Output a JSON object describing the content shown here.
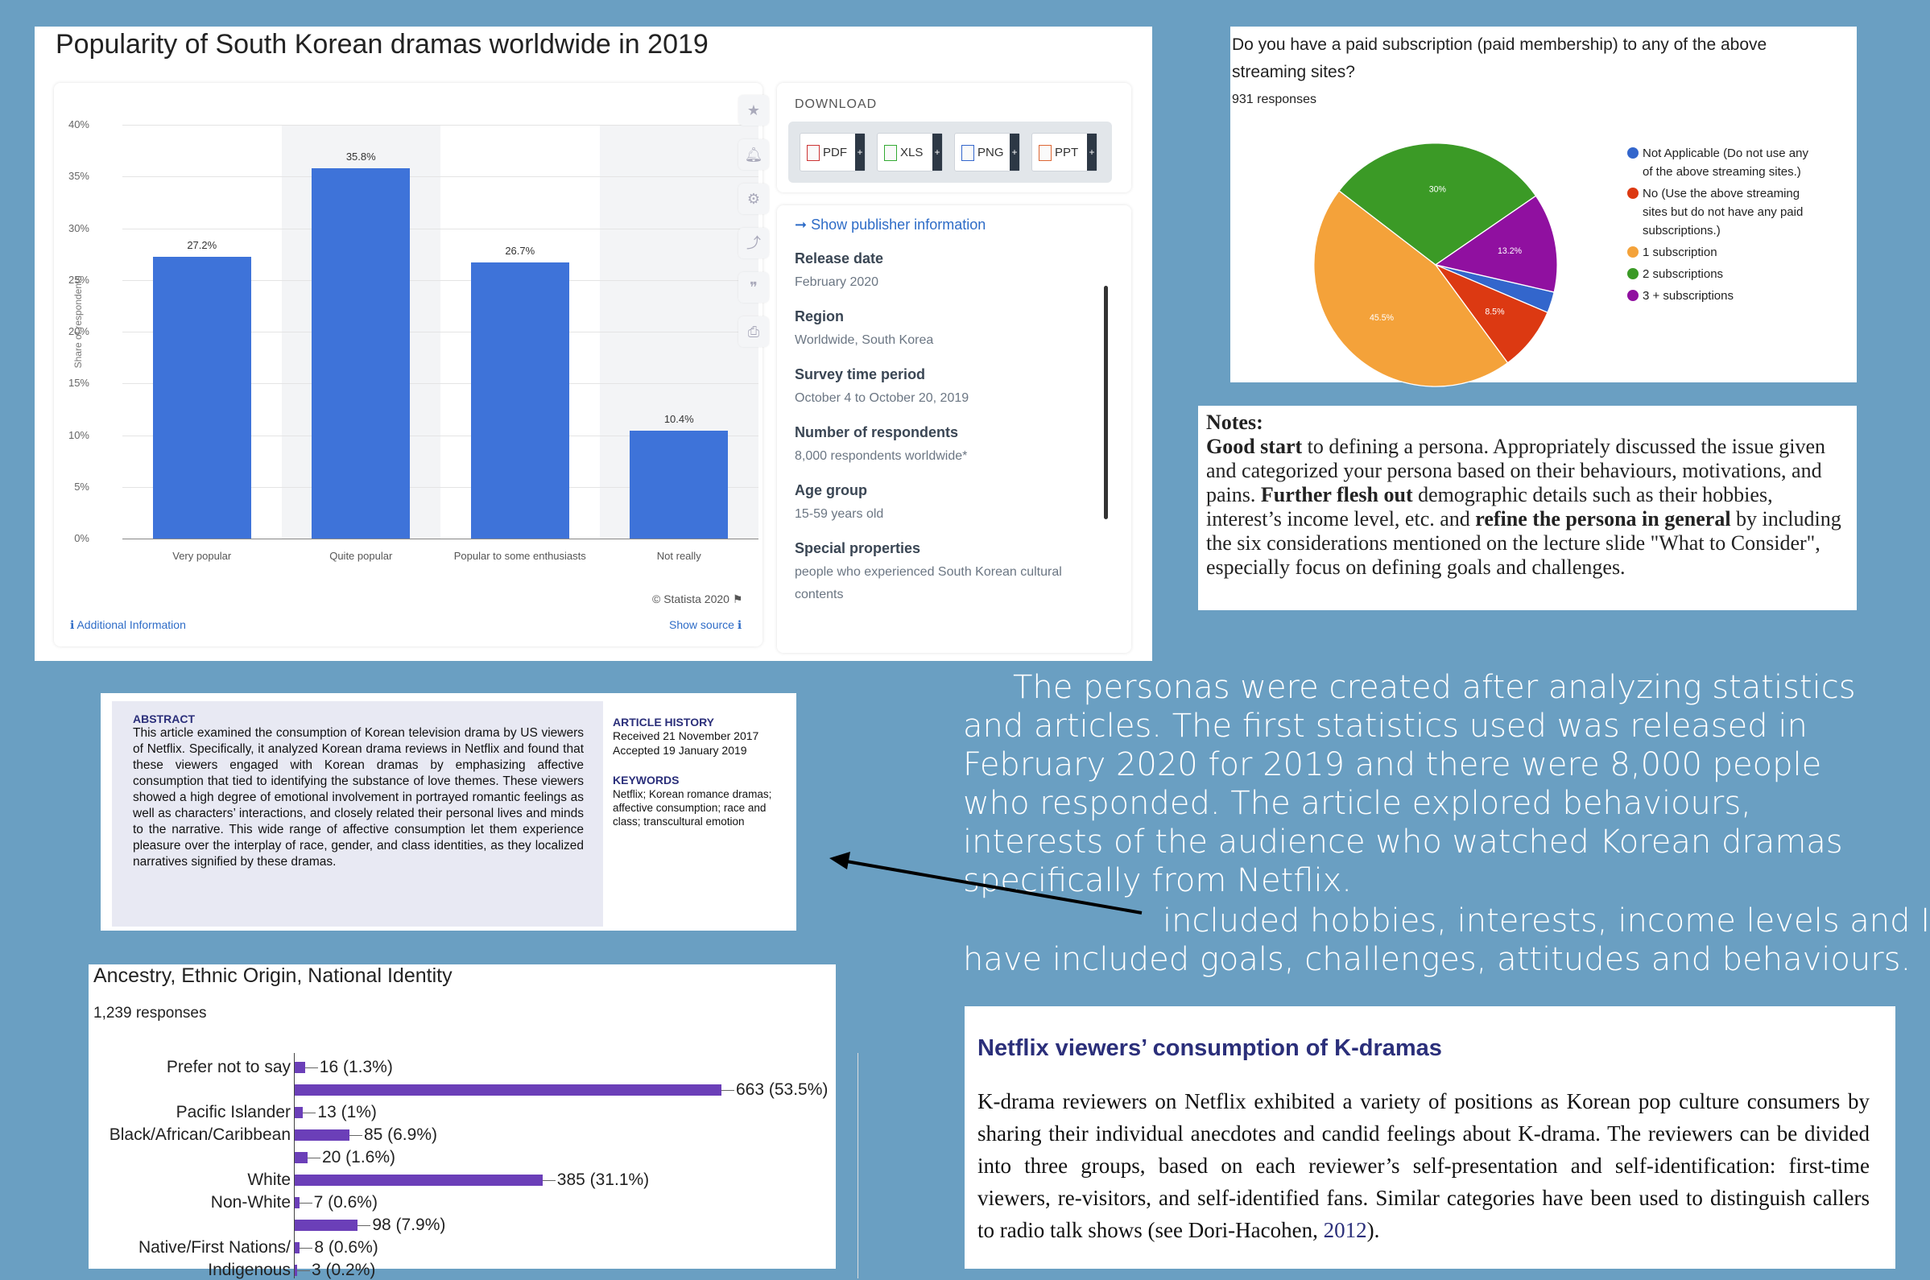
{
  "statista": {
    "title": "Popularity of South Korean dramas worldwide in 2019",
    "ylabel": "Share of respondents",
    "source": "© Statista 2020",
    "additional_info": "Additional Information",
    "show_source": "Show source",
    "download_title": "DOWNLOAD",
    "download_buttons": [
      "PDF",
      "XLS",
      "PNG",
      "PPT"
    ],
    "plus": "+",
    "publisher_link": "Show publisher information",
    "info": [
      {
        "h": "Release date",
        "v": "February 2020"
      },
      {
        "h": "Region",
        "v": "Worldwide, South Korea"
      },
      {
        "h": "Survey time period",
        "v": "October 4 to October 20, 2019"
      },
      {
        "h": "Number of respondents",
        "v": "8,000 respondents worldwide*"
      },
      {
        "h": "Age group",
        "v": "15-59 years old"
      },
      {
        "h": "Special properties",
        "v": "people who experienced South Korean cultural contents"
      }
    ]
  },
  "chart_data": [
    {
      "type": "bar",
      "title": "Popularity of South Korean dramas worldwide in 2019",
      "xlabel": "",
      "ylabel": "Share of respondents",
      "categories": [
        "Very popular",
        "Quite popular",
        "Popular to some enthusiasts",
        "Not really"
      ],
      "values": [
        27.2,
        35.8,
        26.7,
        10.4
      ],
      "value_labels": [
        "27.2%",
        "35.8%",
        "26.7%",
        "10.4%"
      ],
      "ylim": [
        0,
        40
      ],
      "yticks": [
        "0%",
        "5%",
        "10%",
        "15%",
        "20%",
        "25%",
        "30%",
        "35%",
        "40%"
      ],
      "grid": true,
      "colors": [
        "#3e73d9"
      ]
    },
    {
      "type": "pie",
      "title": "Do you have a paid subscription (paid membership) to any of the above streaming sites?",
      "subtitle": "931 responses",
      "categories": [
        "Not Applicable (Do not use any of the above streaming sites.)",
        "No (Use the above streaming sites but do not have any paid subscriptions.)",
        "1 subscription",
        "2 subscriptions",
        "3 + subscriptions"
      ],
      "values": [
        2.8,
        8.5,
        45.5,
        30,
        13.2
      ],
      "value_labels": [
        "",
        "8.5%",
        "45.5%",
        "30%",
        "13.2%"
      ],
      "colors": [
        "#3366cc",
        "#dc3912",
        "#f4a23a",
        "#3b9a26",
        "#9010a0"
      ],
      "legend": "right"
    },
    {
      "type": "bar",
      "orientation": "horizontal",
      "title": "Ancestry, Ethnic Origin, National Identity",
      "subtitle": "1,239 responses",
      "rows": [
        {
          "label": "Prefer not to say",
          "count": 16,
          "text": "16 (1.3%)"
        },
        {
          "label": "",
          "count": 663,
          "text": "663 (53.5%)"
        },
        {
          "label": "Pacific Islander",
          "count": 13,
          "text": "13 (1%)"
        },
        {
          "label": "Black/African/Caribbean",
          "count": 85,
          "text": "85 (6.9%)"
        },
        {
          "label": "",
          "count": 20,
          "text": "20 (1.6%)"
        },
        {
          "label": "White",
          "count": 385,
          "text": "385 (31.1%)"
        },
        {
          "label": "Non-White",
          "count": 7,
          "text": "7 (0.6%)"
        },
        {
          "label": "",
          "count": 98,
          "text": "98 (7.9%)"
        },
        {
          "label": "Native/First Nations/",
          "count": 8,
          "text": "8 (0.6%)"
        },
        {
          "label": "Indigenous",
          "count": 3,
          "text": "3 (0.2%)"
        }
      ],
      "colors": [
        "#6b3fb8"
      ]
    }
  ],
  "pie": {
    "title": "Do you have a paid subscription (paid membership) to any of the above streaming sites?",
    "responses": "931 responses"
  },
  "notes": {
    "heading": "Notes:",
    "p1": "Good start",
    "p2": " to defining a persona. Appropriately discussed the issue given and categorized your persona based on their behaviours, motivations, and pains. ",
    "p3": "Further flesh out",
    "p4": " demographic details such as their hobbies, interest’s income level, etc. and ",
    "p5": "refine the persona in general",
    "p6": " by including the six considerations mentioned on the lecture slide \"What to Consider\", especially focus on defining goals and challenges."
  },
  "body": {
    "para1": "The personas were created after analyzing statistics and articles. The first statistics used was released in February 2020 for 2019 and there were 8,000 people who responded. The article explored behaviours, interests of the audience who watched Korean dramas specifically from Netflix.",
    "para2a": "included hobbies, interests, income levels and I",
    "para2b": "have included goals, challenges, attitudes and behaviours."
  },
  "abstract": {
    "heading": "ABSTRACT",
    "text": "This article examined the consumption of Korean television drama by US viewers of Netflix. Specifically, it analyzed Korean drama reviews in Netflix and found that these viewers engaged with Korean dramas by emphasizing affective consumption that tied to identifying the substance of love themes. These viewers showed a high degree of emotional involvement in portrayed romantic feelings as well as characters’ interactions, and closely related their personal lives and minds to the narrative. This wide range of affective consumption let them experience pleasure over the interplay of race, gender, and class identities, as they localized narratives signified by these dramas.",
    "history_heading": "ARTICLE HISTORY",
    "received": "Received 21 November 2017",
    "accepted": "Accepted 19 January 2019",
    "keywords_heading": "KEYWORDS",
    "keywords": "Netflix; Korean romance dramas; affective consumption; race and class; transcultural emotion"
  },
  "ancestry": {
    "title": "Ancestry, Ethnic Origin, National Identity",
    "responses": "1,239 responses"
  },
  "netflix": {
    "title": "Netflix viewers’ consumption of K-dramas",
    "text": "K-drama reviewers on Netflix exhibited a variety of positions as Korean pop culture consumers by sharing their individual anecdotes and candid feelings about K-drama. The reviewers can be divided into three groups, based on each reviewer’s self-presentation and self-identification: first-time viewers, re-visitors, and self-identified fans. Similar categories have been used to distinguish callers to radio talk shows (see Dori-Hacohen, ",
    "year": "2012",
    "end": ")."
  }
}
